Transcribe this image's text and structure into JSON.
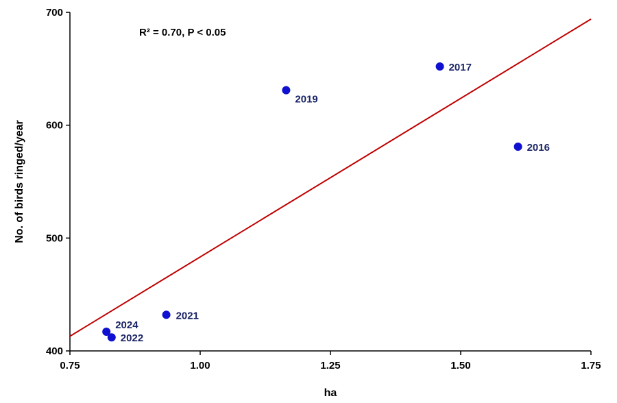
{
  "chart_data": {
    "type": "scatter",
    "title": "",
    "xlabel": "ha",
    "ylabel": "No. of birds ringed/year",
    "xlim": [
      0.75,
      1.75
    ],
    "ylim": [
      400,
      700
    ],
    "x_ticks": [
      "0.75",
      "1.00",
      "1.25",
      "1.50",
      "1.75"
    ],
    "y_ticks": [
      "400",
      "500",
      "600",
      "700"
    ],
    "grid": false,
    "legend": "none",
    "annotation": "R² = 0.70, P < 0.05",
    "points": [
      {
        "label": "2016",
        "x": 1.61,
        "y": 581
      },
      {
        "label": "2017",
        "x": 1.46,
        "y": 652
      },
      {
        "label": "2019",
        "x": 1.165,
        "y": 631
      },
      {
        "label": "2021",
        "x": 0.935,
        "y": 432
      },
      {
        "label": "2022",
        "x": 0.83,
        "y": 412
      },
      {
        "label": "2024",
        "x": 0.82,
        "y": 417
      }
    ],
    "trendline": {
      "x": [
        0.75,
        1.75
      ],
      "y": [
        413,
        694
      ]
    },
    "colors": {
      "points": "#1010d0",
      "trendline": "#c00000",
      "point_labels": "#1a2466"
    }
  }
}
